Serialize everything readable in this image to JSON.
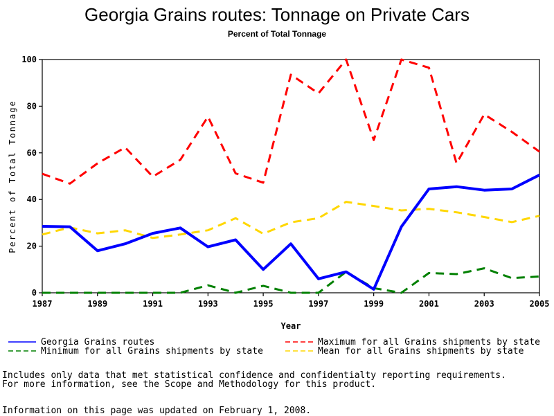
{
  "chart_data": {
    "type": "line",
    "title": "Georgia Grains routes: Tonnage on Private Cars",
    "subtitle": "Percent of Total Tonnage",
    "xlabel": "Year",
    "ylabel": "Percent of Total Tonnage",
    "xlim": [
      1987,
      2005
    ],
    "ylim": [
      0,
      100
    ],
    "x": [
      1987,
      1988,
      1989,
      1990,
      1991,
      1992,
      1993,
      1994,
      1995,
      1996,
      1997,
      1998,
      1999,
      2000,
      2001,
      2002,
      2003,
      2004,
      2005
    ],
    "x_tick_labels": [
      "1987",
      "1989",
      "1991",
      "1993",
      "1995",
      "1997",
      "1999",
      "2001",
      "2003",
      "2005"
    ],
    "x_ticks": [
      1987,
      1989,
      1991,
      1993,
      1995,
      1997,
      1999,
      2001,
      2003,
      2005
    ],
    "y_ticks": [
      0,
      20,
      40,
      60,
      80,
      100
    ],
    "y_tick_labels": [
      "0",
      "20",
      "40",
      "60",
      "80",
      "100"
    ],
    "grid": false,
    "legend_position": "bottom",
    "series": [
      {
        "name": "Georgia Grains routes",
        "color": "#0000ff",
        "style": "solid",
        "values": [
          28.5,
          28.3,
          18,
          21,
          25.5,
          27.8,
          19.7,
          22.7,
          10,
          21,
          6,
          9,
          1.5,
          28.3,
          44.5,
          45.5,
          44,
          44.5,
          50.5
        ]
      },
      {
        "name": "Maximum for all Grains shipments by state",
        "color": "#ff0000",
        "style": "dashed",
        "values": [
          51,
          46.8,
          55.5,
          62.3,
          49.8,
          57,
          75.5,
          51.2,
          47.2,
          93.5,
          85.5,
          100,
          65.5,
          100,
          96.5,
          55.5,
          76.5,
          69,
          60.5
        ]
      },
      {
        "name": "Minimum for all Grains shipments by state",
        "color": "#008000",
        "style": "dashed",
        "values": [
          0,
          0,
          0,
          0,
          0,
          0,
          3.2,
          0,
          3,
          0,
          0,
          9,
          2,
          0,
          8.5,
          8,
          10.5,
          6.3,
          7
        ]
      },
      {
        "name": "Mean for all Grains shipments by state",
        "color": "#ffd700",
        "style": "dashed",
        "values": [
          25,
          28,
          25.5,
          26.8,
          23.5,
          25,
          26.8,
          32,
          25.3,
          30.2,
          32,
          39,
          37.2,
          35.3,
          36,
          34.5,
          32.5,
          30.3,
          33
        ]
      }
    ]
  },
  "notes": {
    "line1": "Includes only data that met statistical confidence and confidentialty reporting requirements.",
    "line2": "For more information, see the Scope and Methodology for this product.",
    "updated": "Information on this page was updated on February 1, 2008."
  }
}
